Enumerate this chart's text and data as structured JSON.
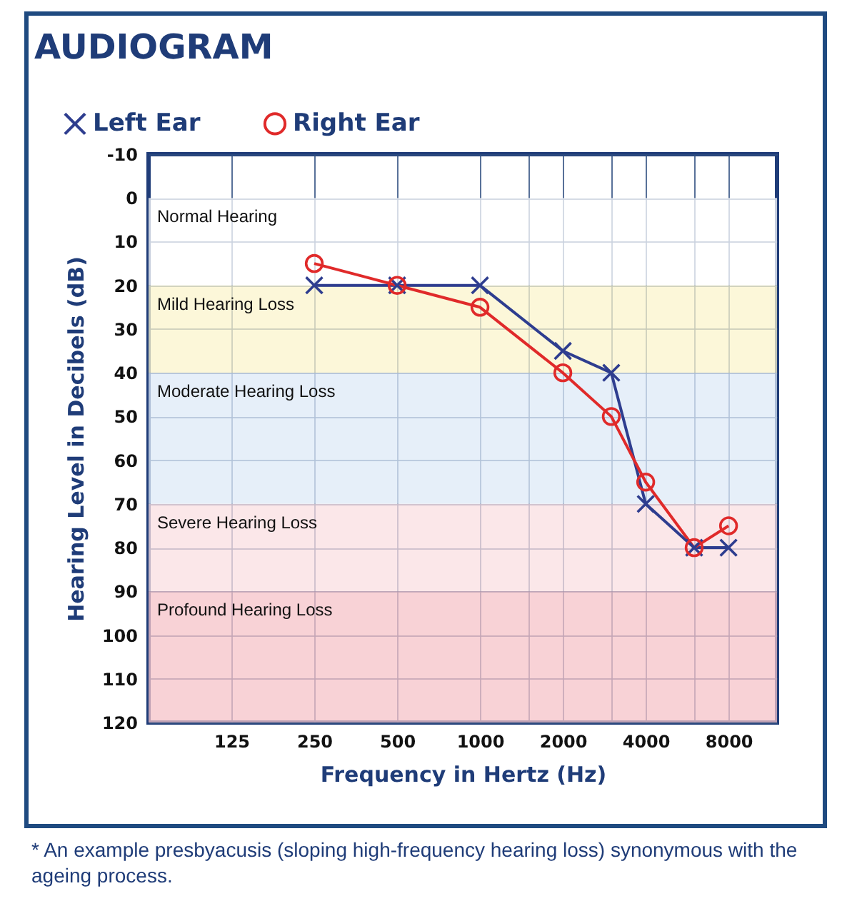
{
  "chart_data": {
    "type": "line",
    "title": "AUDIOGRAM",
    "xlabel": "Frequency in Hertz (Hz)",
    "ylabel": "Hearing Level in Decibels (dB)",
    "x": [
      250,
      500,
      1000,
      2000,
      3000,
      4000,
      6000,
      8000
    ],
    "series": [
      {
        "name": "Left Ear",
        "color": "#2e3d8f",
        "marker": "cross",
        "values": [
          20,
          20,
          20,
          35,
          40,
          70,
          80,
          80
        ]
      },
      {
        "name": "Right Ear",
        "color": "#e02a2a",
        "marker": "circle",
        "values": [
          15,
          20,
          25,
          40,
          50,
          65,
          80,
          75
        ]
      }
    ],
    "log": "x",
    "xlim": [
      62.5,
      12000
    ],
    "xticks": [
      125,
      250,
      500,
      1000,
      {
        "value": 1500,
        "label": null
      },
      2000,
      {
        "value": 3000,
        "label": null
      },
      4000,
      {
        "value": 6000,
        "label": null
      },
      8000
    ],
    "ylim": [
      120,
      -10
    ],
    "yticks": [
      -10,
      0,
      10,
      20,
      30,
      40,
      50,
      60,
      70,
      80,
      90,
      100,
      110,
      120
    ],
    "grid": true,
    "legend": "top left",
    "bands": [
      {
        "axis": "y",
        "from": 0,
        "to": 20,
        "label": "Normal Hearing",
        "color": "#ffffff"
      },
      {
        "axis": "y",
        "from": 20,
        "to": 40,
        "label": "Mild Hearing Loss",
        "color": "#fbf4cc"
      },
      {
        "axis": "y",
        "from": 40,
        "to": 70,
        "label": "Moderate Hearing Loss",
        "color": "#dde9f7"
      },
      {
        "axis": "y",
        "from": 70,
        "to": 90,
        "label": "Severe Hearing Loss",
        "color": "#f9dfe2"
      },
      {
        "axis": "y",
        "from": 90,
        "to": 120,
        "label": "Profound Hearing Loss",
        "color": "#f6c3c8"
      }
    ],
    "annotations": [
      "* An example presbyacusis (sloping high-frequency hearing loss) synonymous with the ageing process."
    ]
  }
}
